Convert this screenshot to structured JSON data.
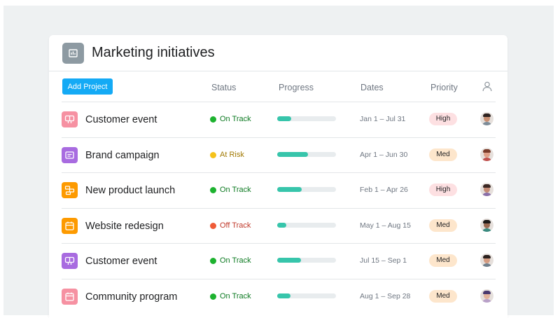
{
  "header": {
    "title": "Marketing initiatives",
    "app_icon": "chart-icon"
  },
  "toolbar": {
    "add_label": "Add Project"
  },
  "columns": {
    "status": "Status",
    "progress": "Progress",
    "dates": "Dates",
    "priority": "Priority",
    "assignee_icon": "user-icon"
  },
  "colors": {
    "accent": "#14aaf5",
    "on_track": "#1db22f",
    "at_risk": "#f5c21b",
    "off_track": "#ef5b37",
    "progress_fill": "#37c5ab",
    "priority_high": "#fde0e2",
    "priority_med": "#fde6cc"
  },
  "projects": [
    {
      "name": "Customer event",
      "icon": "megaphone-icon",
      "icon_color": "#f691a2",
      "status": "On Track",
      "status_key": "on_track",
      "progress": 0.24,
      "dates": "Jan 1 – Jul 31",
      "priority": "High"
    },
    {
      "name": "Brand campaign",
      "icon": "card-icon",
      "icon_color": "#a86be0",
      "status": "At Risk",
      "status_key": "at_risk",
      "progress": 0.52,
      "dates": "Apr 1 – Jun 30",
      "priority": "Med"
    },
    {
      "name": "New product launch",
      "icon": "launch-icon",
      "icon_color": "#fd9a00",
      "status": "On Track",
      "status_key": "on_track",
      "progress": 0.42,
      "dates": "Feb 1 – Apr 26",
      "priority": "High"
    },
    {
      "name": "Website redesign",
      "icon": "calendar-icon",
      "icon_color": "#fd9a00",
      "status": "Off Track",
      "status_key": "off_track",
      "progress": 0.15,
      "dates": "May 1 – Aug 15",
      "priority": "Med"
    },
    {
      "name": "Customer event",
      "icon": "megaphone-icon",
      "icon_color": "#a86be0",
      "status": "On Track",
      "status_key": "on_track",
      "progress": 0.41,
      "dates": "Jul 15 – Sep 1",
      "priority": "Med"
    },
    {
      "name": "Community program",
      "icon": "calendar-icon",
      "icon_color": "#f691a2",
      "status": "On Track",
      "status_key": "on_track",
      "progress": 0.23,
      "dates": "Aug 1 – Sep 28",
      "priority": "Med"
    }
  ]
}
